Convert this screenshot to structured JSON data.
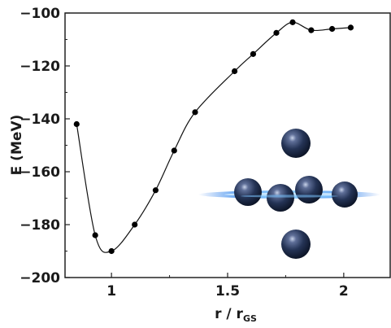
{
  "chart_data": {
    "type": "line",
    "title": "",
    "xlabel": "r / r",
    "xlabel_subscript": "GS",
    "ylabel": "E (MeV)",
    "xlim": [
      0.8,
      2.2
    ],
    "ylim": [
      -200,
      -100
    ],
    "xticks": [
      1,
      1.5,
      2
    ],
    "xtick_labels": [
      "1",
      "1.5",
      "2"
    ],
    "yticks": [
      -200,
      -180,
      -160,
      -140,
      -120,
      -100
    ],
    "ytick_labels": [
      "−200",
      "−180",
      "−160",
      "−140",
      "−120",
      "−100"
    ],
    "grid": false,
    "legend": "none",
    "series": [
      {
        "x": [
          0.85,
          0.93,
          1.0,
          1.1,
          1.19,
          1.27,
          1.36,
          1.53,
          1.61,
          1.71,
          1.78,
          1.86,
          1.95,
          2.03
        ],
        "y": [
          -142,
          -184,
          -190,
          -180,
          -167,
          -152,
          -137.5,
          -122,
          -115.5,
          -107.5,
          -103.5,
          -106.5,
          -106,
          -105.5
        ]
      }
    ],
    "inset": "nucleus-cluster-illustration",
    "colors": {
      "line": "#111111",
      "marker": "#000000",
      "sphere": "#1b2a4a",
      "halo": "#3d8ff0"
    }
  }
}
